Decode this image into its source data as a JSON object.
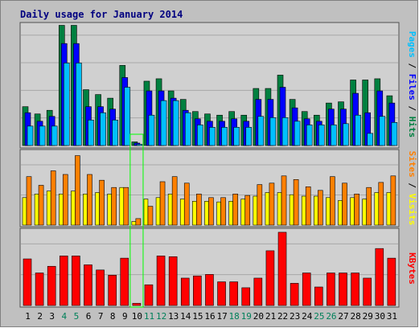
{
  "chart_data": {
    "type": "bar",
    "title": "Daily usage for January 2014",
    "categories": [
      "1",
      "2",
      "3",
      "4",
      "5",
      "6",
      "7",
      "8",
      "9",
      "10",
      "11",
      "12",
      "13",
      "14",
      "15",
      "16",
      "17",
      "18",
      "19",
      "20",
      "21",
      "22",
      "23",
      "24",
      "25",
      "26",
      "27",
      "28",
      "29",
      "30",
      "31"
    ],
    "weekend_days": [
      4,
      5,
      11,
      12,
      18,
      19,
      25,
      26
    ],
    "highlight_day": 10,
    "panels": [
      {
        "label_parts": [
          "Pages",
          "Files",
          "Hits"
        ],
        "label_colors": [
          "#00c0ff",
          "#0000ff",
          "#008040"
        ],
        "ylim": [
          0,
          1
        ],
        "series": [
          {
            "name": "Hits",
            "color": "#008040",
            "values": [
              0.32,
              0.26,
              0.29,
              0.99,
              0.99,
              0.46,
              0.42,
              0.39,
              0.66,
              0.03,
              0.53,
              0.55,
              0.45,
              0.38,
              0.28,
              0.26,
              0.25,
              0.28,
              0.25,
              0.47,
              0.47,
              0.58,
              0.38,
              0.28,
              0.25,
              0.35,
              0.36,
              0.54,
              0.54,
              0.55,
              0.41
            ]
          },
          {
            "name": "Files",
            "color": "#0000ff",
            "values": [
              0.27,
              0.2,
              0.24,
              0.84,
              0.84,
              0.32,
              0.32,
              0.3,
              0.56,
              0.02,
              0.45,
              0.45,
              0.39,
              0.29,
              0.22,
              0.2,
              0.2,
              0.22,
              0.2,
              0.38,
              0.38,
              0.48,
              0.31,
              0.22,
              0.2,
              0.3,
              0.3,
              0.43,
              0.27,
              0.45,
              0.35
            ]
          },
          {
            "name": "Pages",
            "color": "#00c0ff",
            "values": [
              0.16,
              0.16,
              0.16,
              0.68,
              0.68,
              0.21,
              0.27,
              0.21,
              0.48,
              0.01,
              0.25,
              0.37,
              0.37,
              0.27,
              0.17,
              0.15,
              0.15,
              0.15,
              0.15,
              0.24,
              0.23,
              0.23,
              0.2,
              0.17,
              0.17,
              0.17,
              0.18,
              0.25,
              0.1,
              0.24,
              0.19
            ]
          }
        ]
      },
      {
        "label_parts": [
          "Sites",
          "Visits"
        ],
        "label_colors": [
          "#ff8000",
          "#ffff00"
        ],
        "ylim": [
          0,
          1
        ],
        "series": [
          {
            "name": "Visits",
            "color": "#ffff00",
            "values": [
              0.38,
              0.43,
              0.47,
              0.43,
              0.47,
              0.43,
              0.45,
              0.43,
              0.52,
              0.05,
              0.36,
              0.38,
              0.43,
              0.36,
              0.33,
              0.33,
              0.32,
              0.33,
              0.36,
              0.4,
              0.45,
              0.45,
              0.42,
              0.4,
              0.4,
              0.38,
              0.34,
              0.38,
              0.36,
              0.45,
              0.45
            ]
          },
          {
            "name": "Sites",
            "color": "#ff8000",
            "values": [
              0.67,
              0.55,
              0.75,
              0.7,
              0.96,
              0.7,
              0.62,
              0.52,
              0.52,
              0.09,
              0.26,
              0.6,
              0.67,
              0.58,
              0.43,
              0.38,
              0.38,
              0.43,
              0.41,
              0.56,
              0.58,
              0.68,
              0.63,
              0.53,
              0.48,
              0.67,
              0.58,
              0.43,
              0.52,
              0.59,
              0.68
            ]
          }
        ]
      },
      {
        "label_parts": [
          "KBytes"
        ],
        "label_colors": [
          "#ff0000"
        ],
        "ylim": [
          0,
          1
        ],
        "series": [
          {
            "name": "KBytes",
            "color": "#ff0000",
            "values": [
              0.63,
              0.44,
              0.53,
              0.67,
              0.67,
              0.55,
              0.48,
              0.41,
              0.64,
              0.03,
              0.28,
              0.67,
              0.66,
              0.37,
              0.4,
              0.42,
              0.32,
              0.32,
              0.24,
              0.37,
              0.74,
              0.99,
              0.3,
              0.44,
              0.25,
              0.44,
              0.44,
              0.44,
              0.37,
              0.77,
              0.64
            ]
          }
        ]
      }
    ]
  }
}
